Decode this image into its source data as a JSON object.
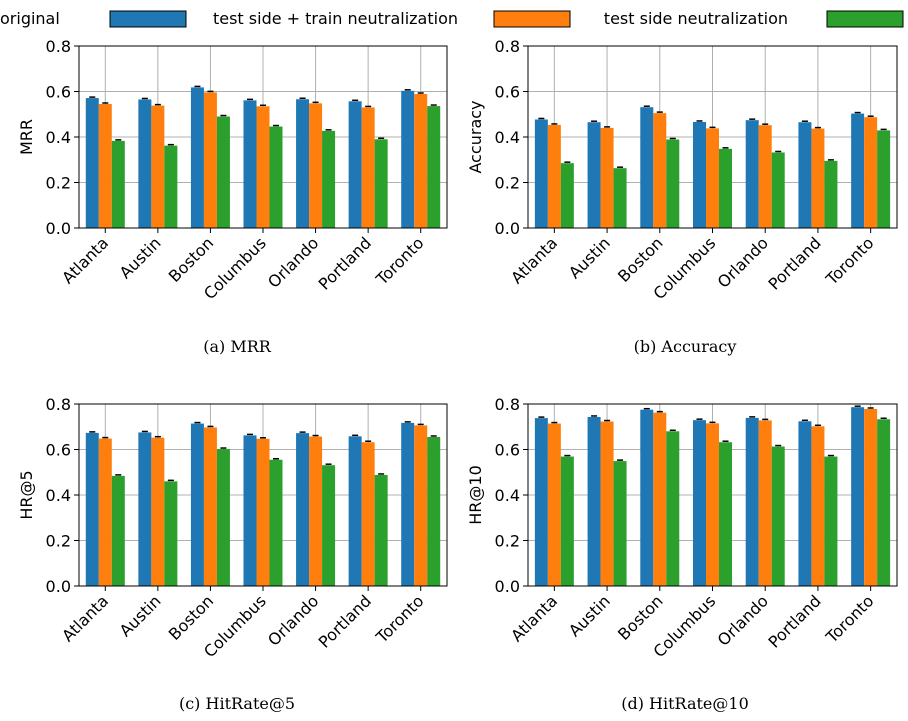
{
  "legend": [
    {
      "label": "original",
      "color": "#1f77b4"
    },
    {
      "label": "test side + train neutralization",
      "color": "#ff7f0e"
    },
    {
      "label": "test side neutralization",
      "color": "#2ca02c"
    }
  ],
  "chart_data": [
    {
      "type": "bar",
      "caption": "(a) MRR",
      "ylabel": "MRR",
      "ylim": [
        0,
        0.8
      ],
      "yticks": [
        "0.0",
        "0.2",
        "0.4",
        "0.6",
        "0.8"
      ],
      "grid": true,
      "categories": [
        "Atlanta",
        "Austin",
        "Boston",
        "Columbus",
        "Orlando",
        "Portland",
        "Toronto"
      ],
      "series": [
        {
          "name": "original",
          "values": [
            0.571,
            0.565,
            0.618,
            0.561,
            0.566,
            0.557,
            0.603
          ]
        },
        {
          "name": "test side + train neutralization",
          "values": [
            0.545,
            0.538,
            0.596,
            0.535,
            0.548,
            0.53,
            0.589
          ]
        },
        {
          "name": "test side neutralization",
          "values": [
            0.383,
            0.362,
            0.49,
            0.446,
            0.427,
            0.39,
            0.536
          ]
        }
      ]
    },
    {
      "type": "bar",
      "caption": "(b) Accuracy",
      "ylabel": "Accuracy",
      "ylim": [
        0,
        0.8
      ],
      "yticks": [
        "0.0",
        "0.2",
        "0.4",
        "0.6",
        "0.8"
      ],
      "grid": true,
      "categories": [
        "Atlanta",
        "Austin",
        "Boston",
        "Columbus",
        "Orlando",
        "Portland",
        "Toronto"
      ],
      "series": [
        {
          "name": "original",
          "values": [
            0.477,
            0.465,
            0.531,
            0.466,
            0.474,
            0.465,
            0.503
          ]
        },
        {
          "name": "test side + train neutralization",
          "values": [
            0.453,
            0.44,
            0.505,
            0.438,
            0.452,
            0.437,
            0.487
          ]
        },
        {
          "name": "test side neutralization",
          "values": [
            0.285,
            0.263,
            0.389,
            0.348,
            0.332,
            0.295,
            0.429
          ]
        }
      ]
    },
    {
      "type": "bar",
      "caption": "(c) HitRate@5",
      "ylabel": "HR@5",
      "ylim": [
        0,
        0.8
      ],
      "yticks": [
        "0.0",
        "0.2",
        "0.4",
        "0.6",
        "0.8"
      ],
      "grid": true,
      "categories": [
        "Atlanta",
        "Austin",
        "Boston",
        "Columbus",
        "Orlando",
        "Portland",
        "Toronto"
      ],
      "series": [
        {
          "name": "original",
          "values": [
            0.673,
            0.675,
            0.714,
            0.662,
            0.672,
            0.658,
            0.717
          ]
        },
        {
          "name": "test side + train neutralization",
          "values": [
            0.648,
            0.652,
            0.697,
            0.647,
            0.657,
            0.632,
            0.706
          ]
        },
        {
          "name": "test side neutralization",
          "values": [
            0.484,
            0.46,
            0.602,
            0.555,
            0.531,
            0.488,
            0.655
          ]
        }
      ]
    },
    {
      "type": "bar",
      "caption": "(d) HitRate@10",
      "ylabel": "HR@10",
      "ylim": [
        0,
        0.8
      ],
      "yticks": [
        "0.0",
        "0.2",
        "0.4",
        "0.6",
        "0.8"
      ],
      "grid": true,
      "categories": [
        "Atlanta",
        "Austin",
        "Boston",
        "Columbus",
        "Orlando",
        "Portland",
        "Toronto"
      ],
      "series": [
        {
          "name": "original",
          "values": [
            0.738,
            0.743,
            0.775,
            0.729,
            0.739,
            0.724,
            0.786
          ]
        },
        {
          "name": "test side + train neutralization",
          "values": [
            0.714,
            0.723,
            0.762,
            0.715,
            0.728,
            0.702,
            0.778
          ]
        },
        {
          "name": "test side neutralization",
          "values": [
            0.569,
            0.549,
            0.68,
            0.632,
            0.613,
            0.569,
            0.733
          ]
        }
      ]
    }
  ]
}
